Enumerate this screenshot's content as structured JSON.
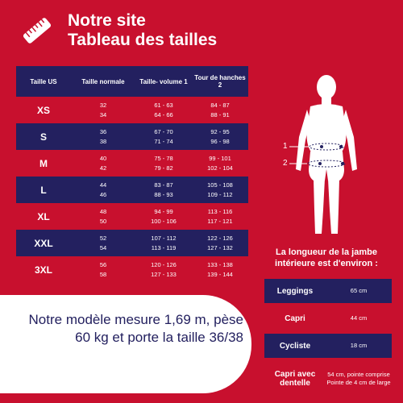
{
  "header": {
    "title_line1": "Notre site",
    "title_line2": "Tableau des tailles"
  },
  "table": {
    "headers": [
      "Taille US",
      "Taille normale",
      "Taille- volume 1",
      "Tour de hanches 2"
    ],
    "rows": [
      {
        "size": "XS",
        "normal": [
          "32",
          "34"
        ],
        "volume": [
          "61 - 63",
          "64 - 66"
        ],
        "hanches": [
          "84 - 87",
          "88 - 91"
        ]
      },
      {
        "size": "S",
        "normal": [
          "36",
          "38"
        ],
        "volume": [
          "67 - 70",
          "71 - 74"
        ],
        "hanches": [
          "92 - 95",
          "96 - 98"
        ]
      },
      {
        "size": "M",
        "normal": [
          "40",
          "42"
        ],
        "volume": [
          "75 - 78",
          "79 - 82"
        ],
        "hanches": [
          "99 - 101",
          "102 - 104"
        ]
      },
      {
        "size": "L",
        "normal": [
          "44",
          "46"
        ],
        "volume": [
          "83 - 87",
          "88 - 93"
        ],
        "hanches": [
          "105 - 108",
          "109 - 112"
        ]
      },
      {
        "size": "XL",
        "normal": [
          "48",
          "50"
        ],
        "volume": [
          "94 - 99",
          "100 - 106"
        ],
        "hanches": [
          "113 - 116",
          "117 - 121"
        ]
      },
      {
        "size": "XXL",
        "normal": [
          "52",
          "54"
        ],
        "volume": [
          "107 - 112",
          "113 - 119"
        ],
        "hanches": [
          "122 - 126",
          "127 - 132"
        ]
      },
      {
        "size": "3XL",
        "normal": [
          "56",
          "58"
        ],
        "volume": [
          "120 - 126",
          "127 - 133"
        ],
        "hanches": [
          "133 - 138",
          "139 - 144"
        ]
      }
    ]
  },
  "figure": {
    "marker1": "1",
    "marker2": "2"
  },
  "jambe": {
    "title": "La longueur de la jambe intérieure est d'environ :",
    "items": [
      {
        "label": "Leggings",
        "value": "65 cm"
      },
      {
        "label": "Capri",
        "value": "44 cm"
      },
      {
        "label": "Cycliste",
        "value": "18 cm"
      },
      {
        "label": "Capri avec dentelle",
        "value": "54 cm, pointe comprise Pointe de 4 cm de large"
      }
    ]
  },
  "model": {
    "text": "Notre modèle mesure 1,69 m, pèse 60 kg et porte la taille 36/38"
  },
  "colors": {
    "background": "#c8102e",
    "navy": "#23205f",
    "white": "#ffffff"
  }
}
